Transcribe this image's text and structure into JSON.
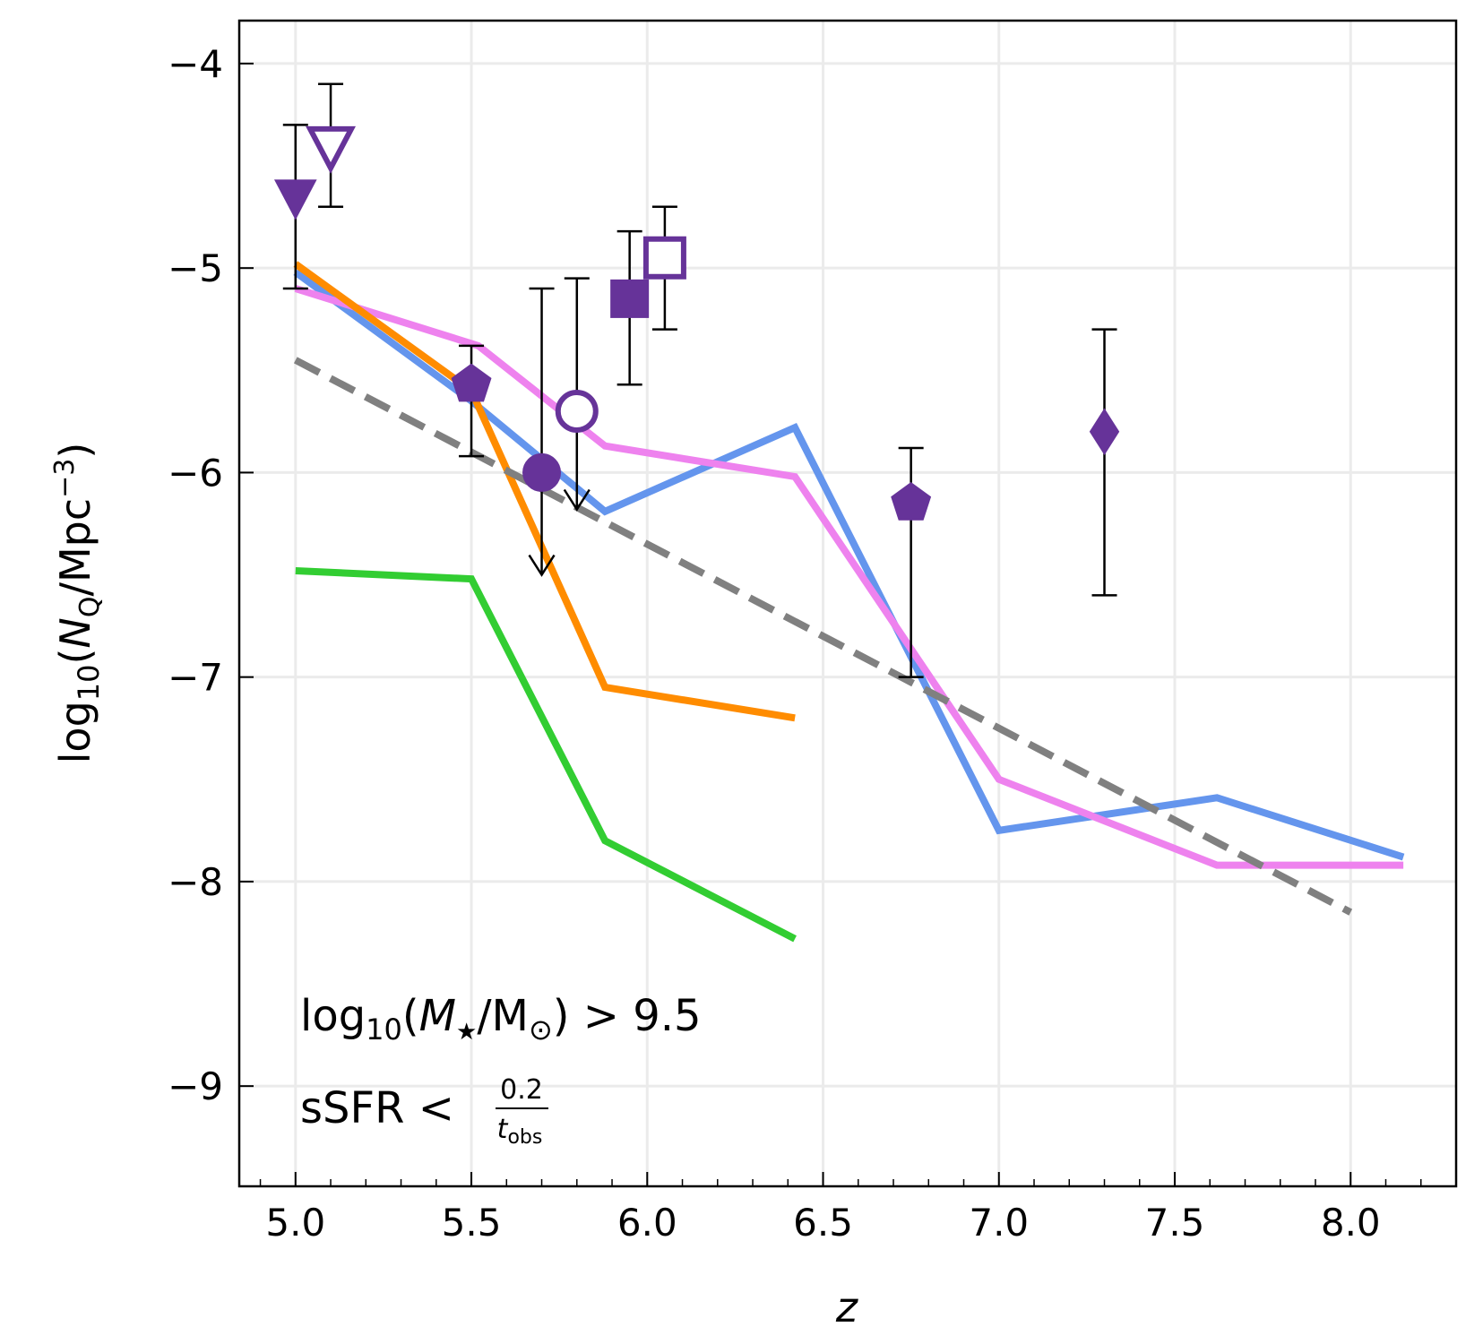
{
  "chart_data": {
    "type": "line",
    "xlabel": "z",
    "ylabel": [
      "log",
      "10",
      "(",
      "N",
      "Q",
      "/Mpc",
      "−3",
      ")"
    ],
    "xlim": [
      4.84,
      8.3
    ],
    "ylim": [
      -9.49,
      -3.79
    ],
    "xticks": [
      {
        "value": 5,
        "label": "5.0"
      },
      {
        "value": 5.5,
        "label": "5.5"
      },
      {
        "value": 6,
        "label": "6.0"
      },
      {
        "value": 6.5,
        "label": "6.5"
      },
      {
        "value": 7,
        "label": "7.0"
      },
      {
        "value": 7.5,
        "label": "7.5"
      },
      {
        "value": 8,
        "label": "8.0"
      }
    ],
    "yticks": [
      {
        "value": -4,
        "label": "−4"
      },
      {
        "value": -5,
        "label": "−5"
      },
      {
        "value": -6,
        "label": "−6"
      },
      {
        "value": -7,
        "label": "−7"
      },
      {
        "value": -8,
        "label": "−8"
      },
      {
        "value": -9,
        "label": "−9"
      }
    ],
    "grid": true,
    "series": [
      {
        "color": "#6495ed",
        "x": [
          5.0,
          5.5,
          5.88,
          6.42,
          7.0,
          7.62,
          8.15
        ],
        "values": [
          -5.02,
          -5.65,
          -6.19,
          -5.78,
          -7.75,
          -7.59,
          -7.88
        ]
      },
      {
        "color": "#ee82ee",
        "x": [
          5.0,
          5.52,
          5.88,
          6.42,
          7.0,
          7.62,
          8.15
        ],
        "values": [
          -5.1,
          -5.38,
          -5.87,
          -6.02,
          -7.5,
          -7.92,
          -7.92
        ]
      },
      {
        "color": "#ff8c00",
        "x": [
          5.0,
          5.5,
          5.88,
          6.42
        ],
        "values": [
          -4.98,
          -5.6,
          -7.05,
          -7.2
        ]
      },
      {
        "color": "#32cd32",
        "x": [
          5.0,
          5.5,
          5.88,
          6.42
        ],
        "values": [
          -6.48,
          -6.52,
          -7.8,
          -8.28
        ]
      },
      {
        "color": "#808080",
        "dashed": true,
        "x": [
          5.0,
          8.0
        ],
        "values": [
          -5.45,
          -8.15
        ]
      }
    ],
    "points": {
      "color": "#663399",
      "x": [
        5.0,
        5.1,
        5.5,
        5.7,
        5.8,
        5.95,
        6.05,
        6.75,
        7.3
      ],
      "values": [
        -4.65,
        -4.4,
        -5.57,
        -6.0,
        -5.7,
        -5.15,
        -4.95,
        -6.15,
        -5.8
      ],
      "lower": [
        -5.1,
        -4.7,
        -5.92,
        -6.5,
        -6.18,
        -5.57,
        -5.3,
        -7.0,
        -6.6
      ],
      "upper": [
        -4.3,
        -4.1,
        -5.38,
        -5.1,
        -5.05,
        -4.82,
        -4.7,
        -5.88,
        -5.3
      ],
      "upper_limit": [
        false,
        false,
        false,
        true,
        true,
        false,
        false,
        false,
        false
      ],
      "marker": [
        "triangle-down",
        "triangle-down",
        "pentagon",
        "circle",
        "circle",
        "square",
        "square",
        "pentagon",
        "diamond"
      ],
      "filled": [
        true,
        false,
        true,
        true,
        false,
        true,
        false,
        true,
        true
      ]
    },
    "annotation_mass": [
      "log",
      "10",
      "(",
      "M",
      "★",
      "/M",
      "⊙",
      ") > 9.5"
    ],
    "annotation_ssfr": [
      "sSFR <",
      "0.2",
      "t",
      "obs"
    ]
  }
}
